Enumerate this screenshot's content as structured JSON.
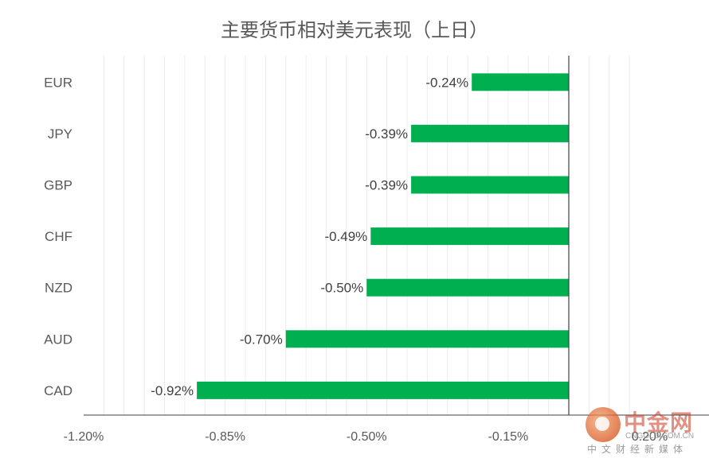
{
  "chart_data": {
    "type": "bar",
    "orientation": "horizontal",
    "title": "主要货币相对美元表现（上日）",
    "categories": [
      "EUR",
      "JPY",
      "GBP",
      "CHF",
      "NZD",
      "AUD",
      "CAD"
    ],
    "values": [
      -0.24,
      -0.39,
      -0.39,
      -0.49,
      -0.5,
      -0.7,
      -0.92
    ],
    "data_labels": [
      "-0.24%",
      "-0.39%",
      "-0.39%",
      "-0.49%",
      "-0.50%",
      "-0.70%",
      "-0.92%"
    ],
    "x_ticks": [
      -1.2,
      -0.85,
      -0.5,
      -0.15,
      0.2
    ],
    "x_tick_labels": [
      "-1.20%",
      "-0.85%",
      "-0.50%",
      "-0.15%",
      "0.20%"
    ],
    "xlim": [
      -1.2,
      0.2
    ],
    "grid": true,
    "legend": "none",
    "bar_color": "#00b050"
  },
  "watermark": {
    "name": "中金网",
    "domain": "CNGOLD.COM.CN",
    "subtitle": "中文财经新媒体"
  }
}
